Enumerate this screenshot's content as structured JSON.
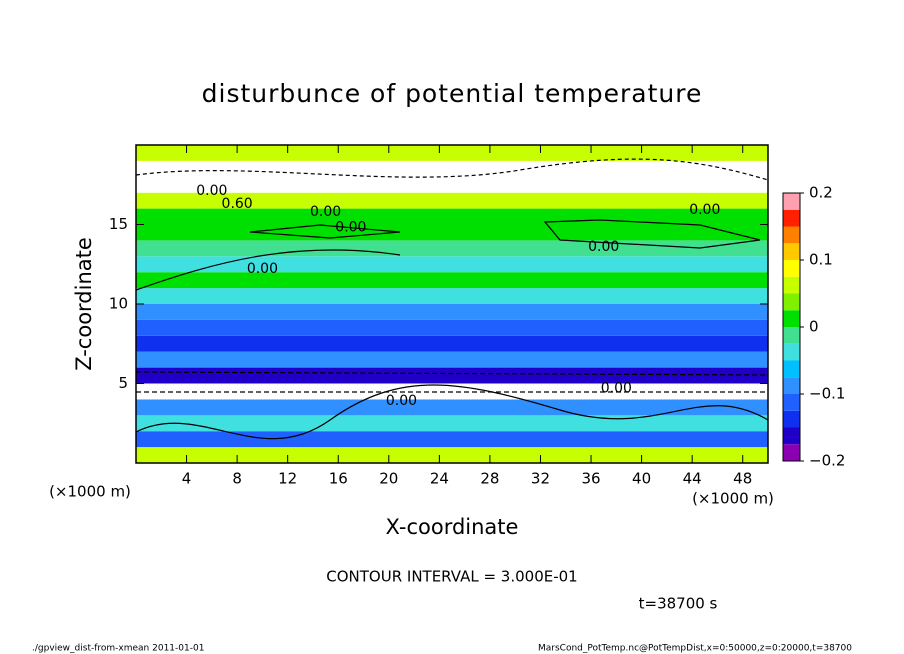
{
  "chart_data": {
    "type": "heatmap",
    "title": "disturbunce of potential temperature",
    "xlabel": "X-coordinate",
    "ylabel": "Z-coordinate",
    "x_unit": "(×1000 m)",
    "xlim": [
      0,
      50
    ],
    "ylim": [
      0,
      20
    ],
    "xticks": [
      4,
      8,
      12,
      16,
      20,
      24,
      28,
      32,
      36,
      40,
      44,
      48
    ],
    "yticks": [
      5,
      10,
      15
    ],
    "zbins": [
      0,
      1,
      2,
      3,
      4,
      5,
      6,
      7,
      8,
      9,
      10,
      11,
      12,
      13,
      14,
      15,
      16,
      17,
      18,
      19,
      20
    ],
    "values": [
      0.05,
      -0.12,
      -0.05,
      -0.1,
      0.25,
      -0.16,
      -0.1,
      -0.15,
      -0.12,
      -0.08,
      -0.04,
      0.0,
      -0.05,
      -0.02,
      0.0,
      0.0,
      0.05,
      0.25,
      0.25,
      0.05
    ],
    "clim": [
      -0.2,
      0.2
    ],
    "cticks": [
      {
        "value": -0.2,
        "label": "−0.2"
      },
      {
        "value": -0.1,
        "label": "−0.1"
      },
      0,
      0.1,
      0.2
    ],
    "colors": [
      "#8c00b4",
      "#2000c8",
      "#1030f0",
      "#2060ff",
      "#3090ff",
      "#00c0ff",
      "#40e0e0",
      "#40e090",
      "#00e000",
      "#80f000",
      "#c8ff00",
      "#ffff00",
      "#ffc800",
      "#ff8000",
      "#ff2000",
      "#ffa0b0"
    ],
    "contour_labels": [
      "0.00",
      "0.60",
      "0.00",
      "0.00",
      "0.00",
      "0.00",
      "0.00",
      "0.00",
      "0.00"
    ],
    "contour_interval": "CONTOUR INTERVAL = 3.000E-01",
    "time_label": "t=38700 s",
    "footer_left": "./gpview_dist-from-xmean  2011-01-01",
    "footer_right": "MarsCond_PotTemp.nc@PotTempDist,x=0:50000,z=0:20000,t=38700"
  }
}
